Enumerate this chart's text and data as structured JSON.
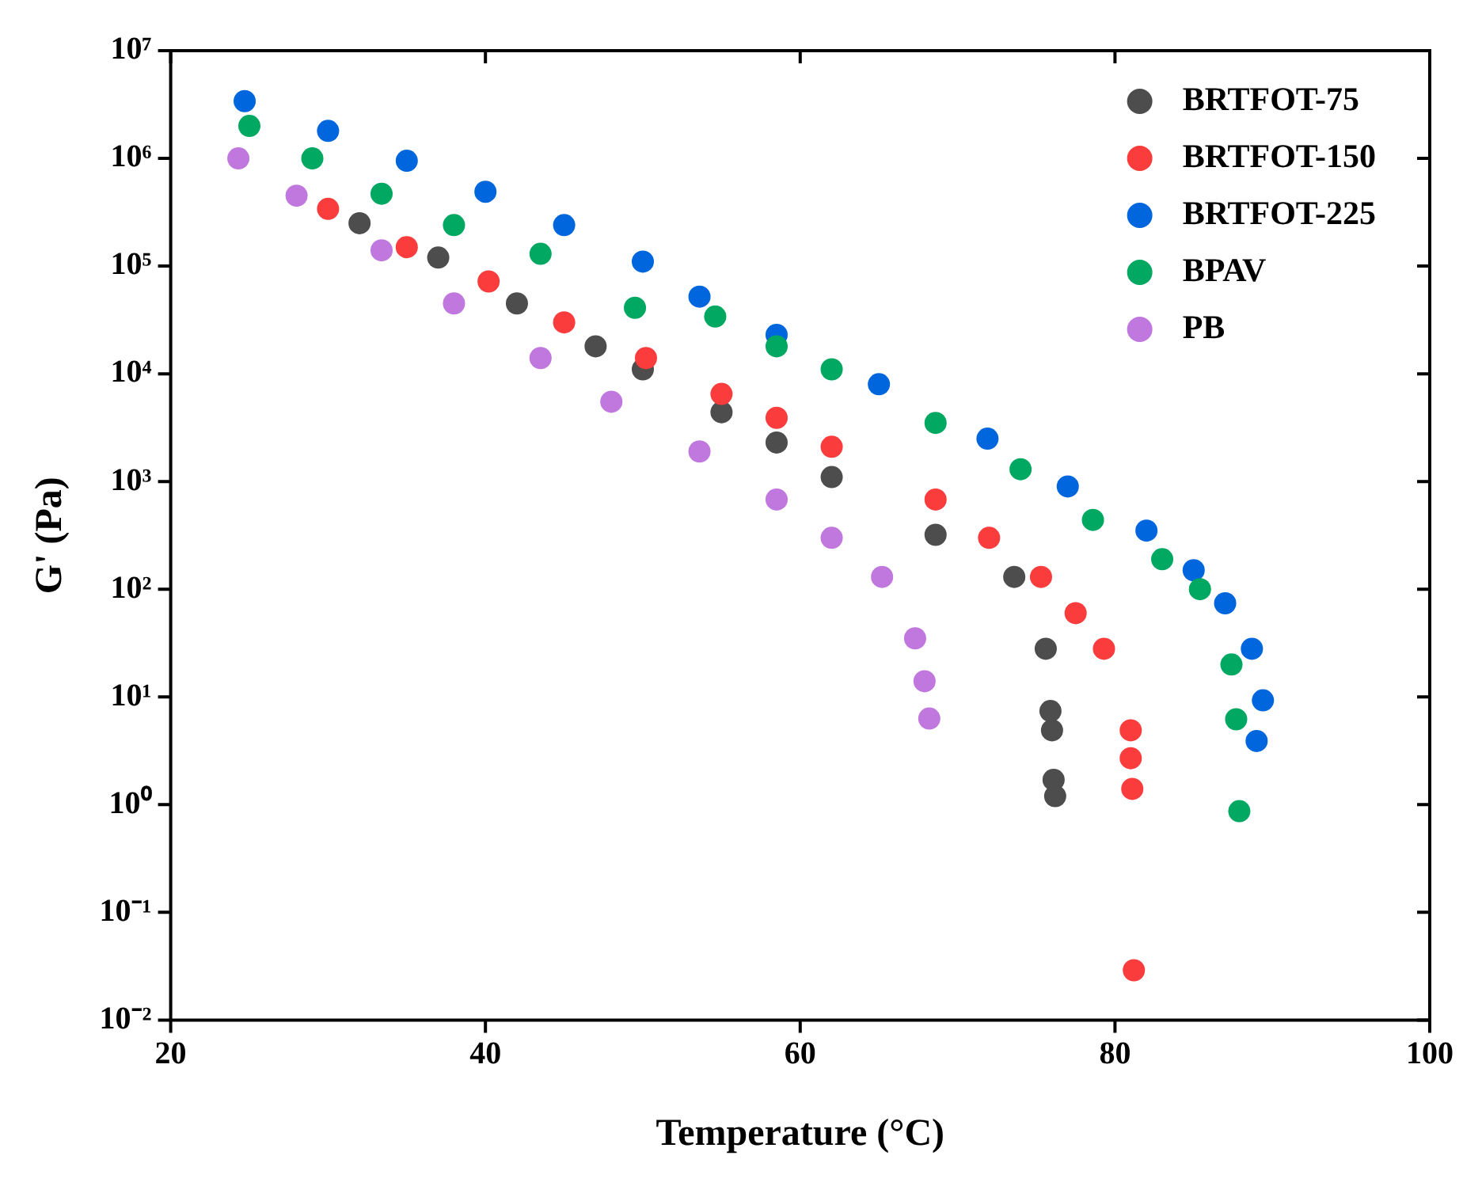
{
  "chart_data": {
    "type": "scatter",
    "xlabel": "Temperature (°C)",
    "ylabel": "G' (Pa)",
    "log": "y",
    "grid": false,
    "legend": "top right",
    "marker": "circle",
    "xlim": [
      20,
      100
    ],
    "xticks": [
      20,
      40,
      60,
      80,
      100
    ],
    "ylim": [
      0.01,
      10000000
    ],
    "yticks": [
      {
        "value": 0.01,
        "label": "10⁻²"
      },
      {
        "value": 0.1,
        "label": "10⁻¹"
      },
      {
        "value": 1,
        "label": "10⁰"
      },
      {
        "value": 10,
        "label": "10¹"
      },
      {
        "value": 100,
        "label": "10²"
      },
      {
        "value": 1000,
        "label": "10³"
      },
      {
        "value": 10000,
        "label": "10⁴"
      },
      {
        "value": 100000,
        "label": "10⁵"
      },
      {
        "value": 1000000,
        "label": "10⁶"
      },
      {
        "value": 10000000,
        "label": "10⁷"
      }
    ],
    "series": [
      {
        "name": "BRTFOT-75",
        "color": "#4d4d4d",
        "x": [
          32,
          37,
          42,
          47,
          50,
          55,
          58.5,
          62,
          68.6,
          73.6,
          75.6,
          75.9,
          76,
          76.1,
          76.2
        ],
        "values": [
          250000,
          120000,
          45000,
          18000,
          11000,
          4400,
          2300,
          1100,
          320,
          130,
          28,
          7.4,
          4.9,
          1.7,
          1.2
        ]
      },
      {
        "name": "BRTFOT-150",
        "color": "#fa3c3c",
        "x": [
          30,
          35,
          40.2,
          45,
          50.2,
          55,
          58.5,
          62,
          68.6,
          72,
          75.3,
          77.5,
          79.3,
          81,
          81,
          81.1,
          81.2
        ],
        "values": [
          340000,
          150000,
          72000,
          30000,
          14000,
          6500,
          3900,
          2100,
          680,
          300,
          130,
          60,
          28,
          4.9,
          2.7,
          1.4,
          0.029
        ]
      },
      {
        "name": "BRTFOT-225",
        "color": "#0066dd",
        "x": [
          24.7,
          30,
          35,
          40,
          45,
          50,
          53.6,
          58.5,
          65,
          71.9,
          77,
          82,
          85,
          87,
          88.7,
          89.4,
          89
        ],
        "values": [
          3400000,
          1800000,
          950000,
          490000,
          240000,
          110000,
          52000,
          23000,
          8000,
          2500,
          900,
          350,
          150,
          74,
          28,
          9.3,
          3.9
        ]
      },
      {
        "name": "BPAV",
        "color": "#00a861",
        "x": [
          25,
          29,
          33.4,
          38,
          43.5,
          49.5,
          54.6,
          58.5,
          62,
          68.6,
          74,
          78.6,
          83,
          85.4,
          87.4,
          87.7,
          87.9
        ],
        "values": [
          2000000,
          1000000,
          470000,
          240000,
          130000,
          41000,
          34000,
          18000,
          11000,
          3500,
          1300,
          440,
          190,
          100,
          20,
          6.2,
          0.87
        ]
      },
      {
        "name": "PB",
        "color": "#c077de",
        "x": [
          24.3,
          28,
          33.4,
          38,
          43.5,
          48,
          53.6,
          58.5,
          62,
          65.2,
          67.3,
          67.9,
          68.2
        ],
        "values": [
          1000000,
          450000,
          140000,
          45000,
          14000,
          5500,
          1900,
          680,
          300,
          130,
          35,
          14,
          6.3
        ]
      }
    ]
  }
}
